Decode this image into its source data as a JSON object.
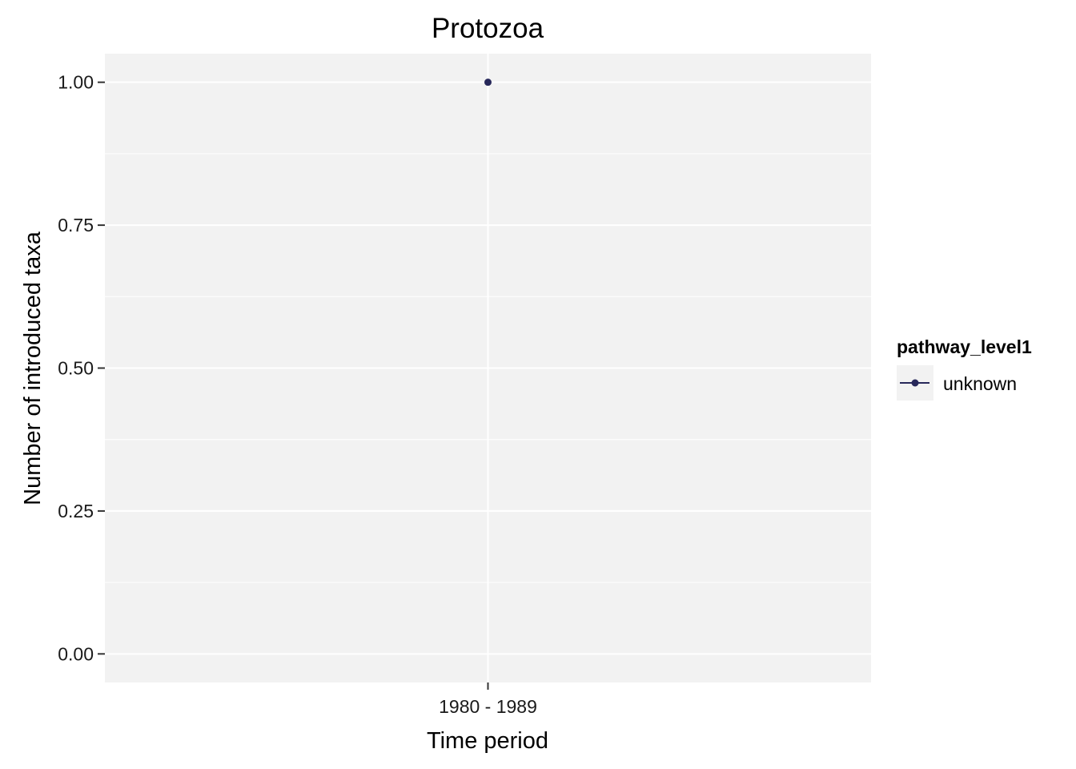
{
  "chart_data": {
    "type": "line",
    "title": "Protozoa",
    "xlabel": "Time period",
    "ylabel": "Number of introduced taxa",
    "categories": [
      "1980 - 1989"
    ],
    "ylim": [
      -0.05,
      1.05
    ],
    "yticks": [
      0.0,
      0.25,
      0.5,
      0.75,
      1.0
    ],
    "ytick_labels": [
      "0.00",
      "0.25",
      "0.50",
      "0.75",
      "1.00"
    ],
    "grid": true,
    "legend": {
      "title": "pathway_level1",
      "placement": "right"
    },
    "series": [
      {
        "name": "unknown",
        "color": "#27285a",
        "values": [
          1
        ]
      }
    ]
  },
  "colors": {
    "panel_background": "#f2f2f2",
    "grid": "#ffffff",
    "tick": "#333333"
  }
}
